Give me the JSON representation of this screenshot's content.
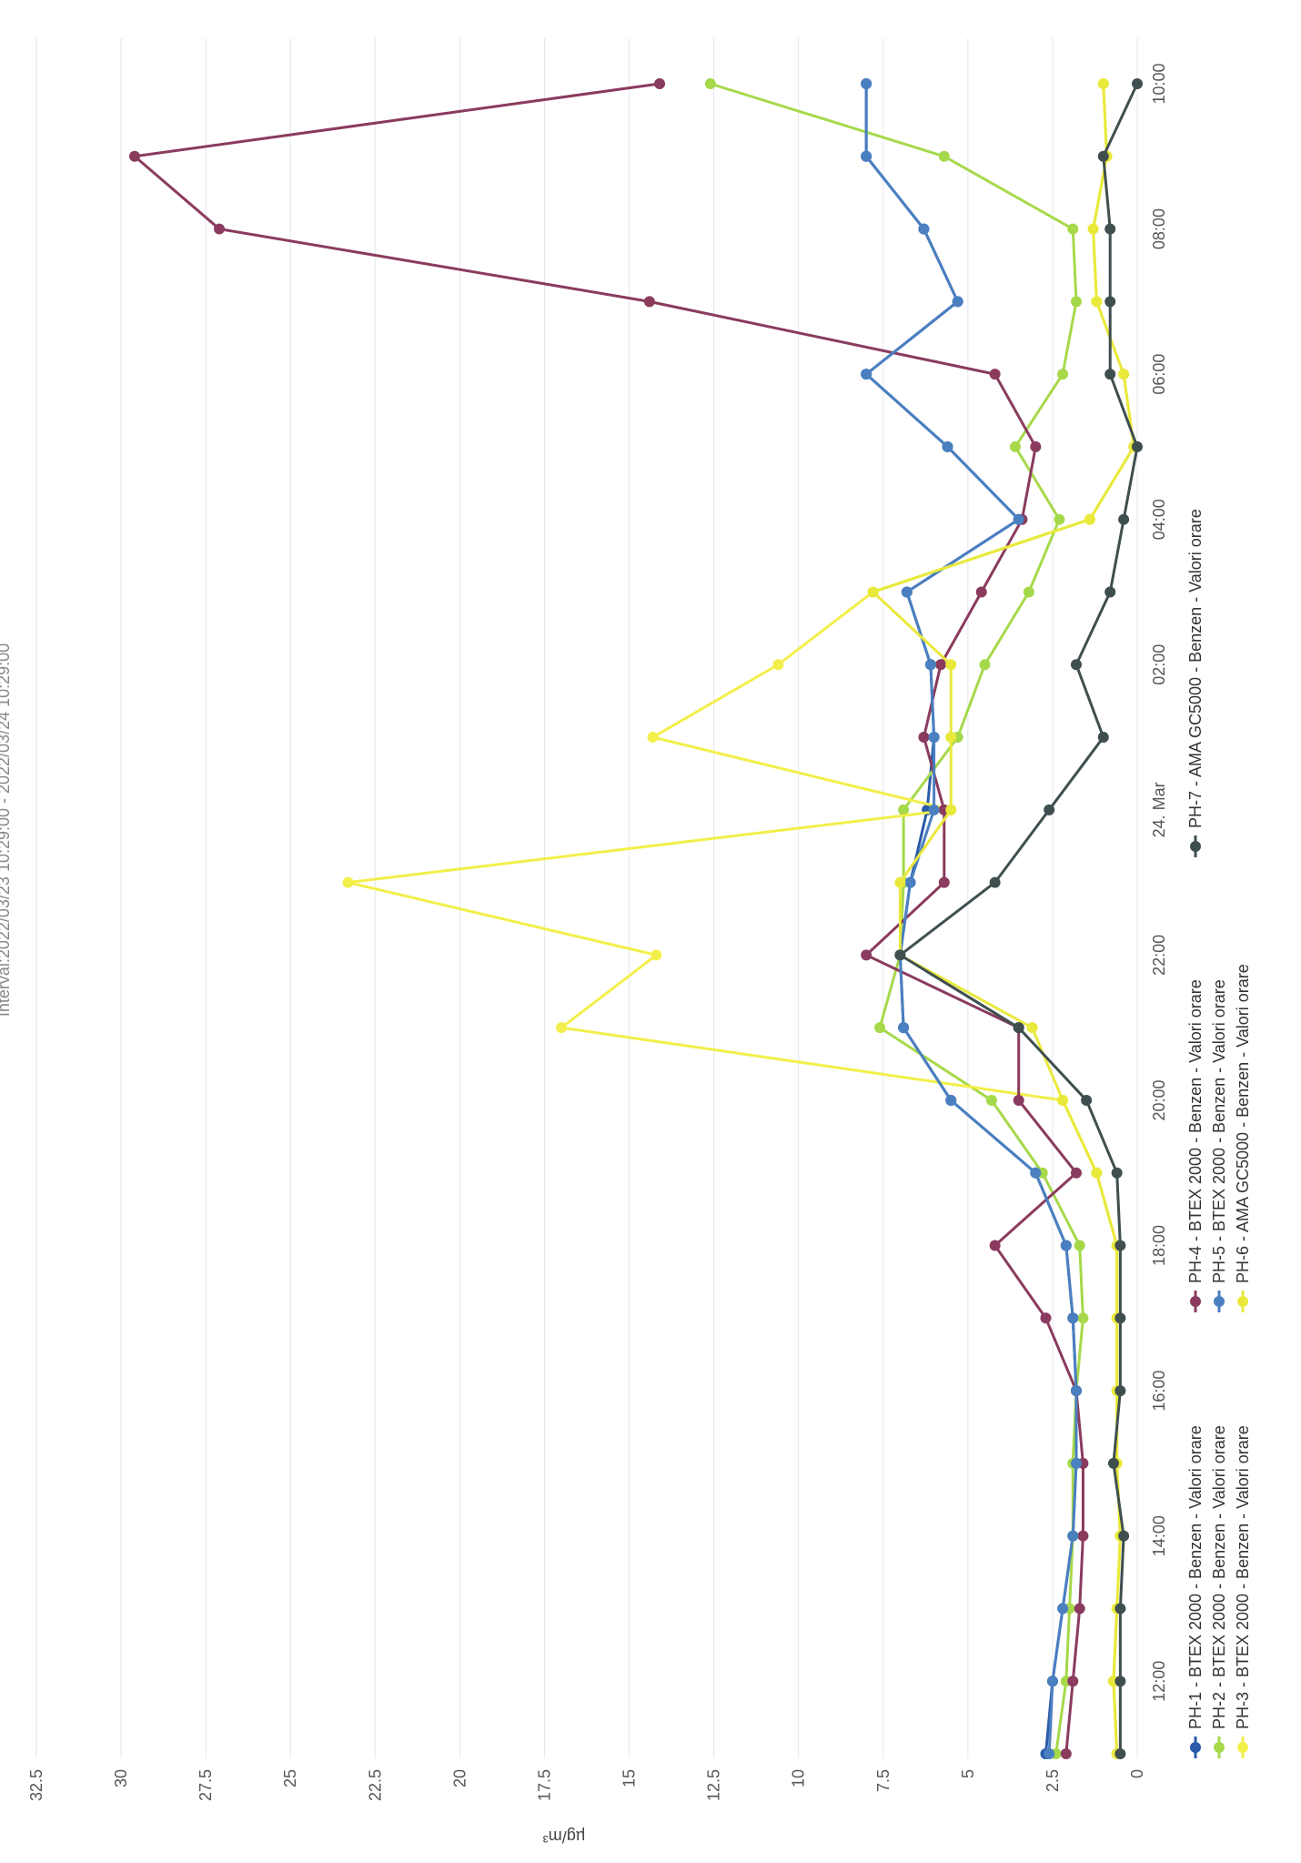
{
  "chart_data": {
    "type": "line",
    "title": "Interval:2022/03/23 10:29:00 - 2022/03/24 10:29:00",
    "ylabel": "µg/m³",
    "xlabel": "",
    "ylim": [
      0,
      32.5
    ],
    "yticks": [
      "0",
      "2.5",
      "5",
      "7.5",
      "10",
      "12.5",
      "15",
      "17.5",
      "20",
      "22.5",
      "25",
      "27.5",
      "30",
      "32.5"
    ],
    "xticks": [
      "12:00",
      "14:00",
      "16:00",
      "18:00",
      "20:00",
      "22:00",
      "24. Mar",
      "02:00",
      "04:00",
      "06:00",
      "08:00",
      "10:00"
    ],
    "grid": true,
    "legend_position": "bottom",
    "x": [
      "11:00",
      "12:00",
      "13:00",
      "14:00",
      "15:00",
      "16:00",
      "17:00",
      "18:00",
      "19:00",
      "20:00",
      "21:00",
      "22:00",
      "23:00",
      "00:00",
      "01:00",
      "02:00",
      "03:00",
      "04:00",
      "05:00",
      "06:00",
      "07:00",
      "08:00",
      "09:00",
      "10:00"
    ],
    "series": [
      {
        "name": "PH-1 - BTEX 2000 - Benzen - Valori orare",
        "color": "#2a5aa8",
        "values": [
          2.7,
          2.5,
          2.2,
          1.9,
          1.8,
          1.8,
          1.9,
          2.1,
          3.0,
          5.5,
          6.9,
          7.0,
          6.7,
          6.2,
          6.0,
          6.1,
          6.8,
          3.5,
          5.6,
          8.0,
          5.3,
          6.3,
          8.0,
          8.0
        ]
      },
      {
        "name": "PH-2 - BTEX 2000 - Benzen - Valori orare",
        "color": "#a6d94a",
        "values": [
          2.4,
          2.1,
          2.0,
          1.9,
          1.9,
          1.8,
          1.6,
          1.7,
          2.8,
          4.3,
          7.6,
          7.0,
          6.9,
          6.9,
          5.3,
          4.5,
          3.2,
          2.3,
          3.6,
          2.2,
          1.8,
          1.9,
          5.7,
          12.6
        ]
      },
      {
        "name": "PH-3 - BTEX 2000 - Benzen - Valori orare",
        "color": "#f3ef4a",
        "values": [
          0.6,
          0.7,
          0.6,
          0.5,
          0.6,
          0.6,
          0.6,
          0.6,
          1.2,
          2.2,
          17.0,
          14.2,
          23.3,
          5.5,
          14.3,
          10.6,
          7.8,
          1.4,
          0.1,
          0.4,
          1.2,
          1.3,
          0.9,
          1.0
        ]
      },
      {
        "name": "PH-4 - BTEX 2000 - Benzen - Valori orare",
        "color": "#8a3b5e",
        "values": [
          2.1,
          1.9,
          1.7,
          1.6,
          1.6,
          1.8,
          2.7,
          4.2,
          1.8,
          3.5,
          3.5,
          8.0,
          5.7,
          5.7,
          6.3,
          5.8,
          4.6,
          3.4,
          3.0,
          4.2,
          14.4,
          27.1,
          29.6,
          14.1
        ]
      },
      {
        "name": "PH-5 - BTEX 2000 - Benzen - Valori orare",
        "color": "#4a7fc0",
        "values": [
          2.6,
          2.5,
          2.2,
          1.9,
          1.8,
          1.8,
          1.9,
          2.1,
          3.0,
          5.5,
          6.9,
          7.0,
          6.7,
          6.0,
          6.0,
          6.1,
          6.8,
          3.5,
          5.6,
          8.0,
          5.3,
          6.3,
          8.0,
          8.0
        ]
      },
      {
        "name": "PH-6 - AMA GC5000 - Benzen - Valori orare",
        "color": "#e9e93c",
        "values": [
          0.6,
          0.7,
          0.6,
          0.5,
          0.6,
          0.6,
          0.6,
          0.6,
          1.2,
          2.2,
          3.1,
          7.0,
          7.0,
          5.5,
          5.5,
          5.5,
          7.8,
          1.4,
          0.1,
          0.4,
          1.2,
          1.3,
          0.9,
          1.0
        ]
      },
      {
        "name": "PH-7 - AMA GC5000 - Benzen - Valori orare",
        "color": "#3f4f4f",
        "values": [
          0.5,
          0.5,
          0.5,
          0.4,
          0.7,
          0.5,
          0.5,
          0.5,
          0.6,
          1.5,
          3.5,
          7.0,
          4.2,
          2.6,
          1.0,
          1.8,
          0.8,
          0.4,
          0.0,
          0.8,
          0.8,
          0.8,
          1.0,
          0.0
        ]
      }
    ]
  }
}
